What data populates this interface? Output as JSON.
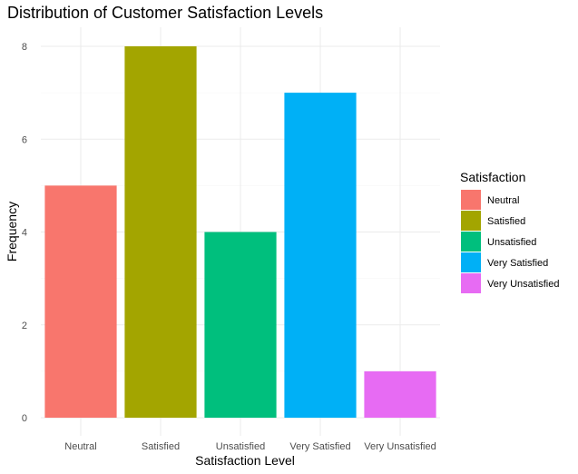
{
  "chart_data": {
    "type": "bar",
    "title": "Distribution of Customer Satisfaction Levels",
    "xlabel": "Satisfaction Level",
    "ylabel": "Frequency",
    "categories": [
      "Neutral",
      "Satisfied",
      "Unsatisfied",
      "Very Satisfied",
      "Very Unsatisfied"
    ],
    "values": [
      5,
      8,
      4,
      7,
      1
    ],
    "colors": [
      "#F8766D",
      "#A3A500",
      "#00BF7D",
      "#00B0F6",
      "#E76BF3"
    ],
    "ylim": [
      0,
      8.4
    ],
    "yticks": [
      0,
      2,
      4,
      6,
      8
    ],
    "grid": true,
    "legend": {
      "title": "Satisfaction",
      "position": "right",
      "entries": [
        "Neutral",
        "Satisfied",
        "Unsatisfied",
        "Very Satisfied",
        "Very Unsatisfied"
      ]
    }
  }
}
